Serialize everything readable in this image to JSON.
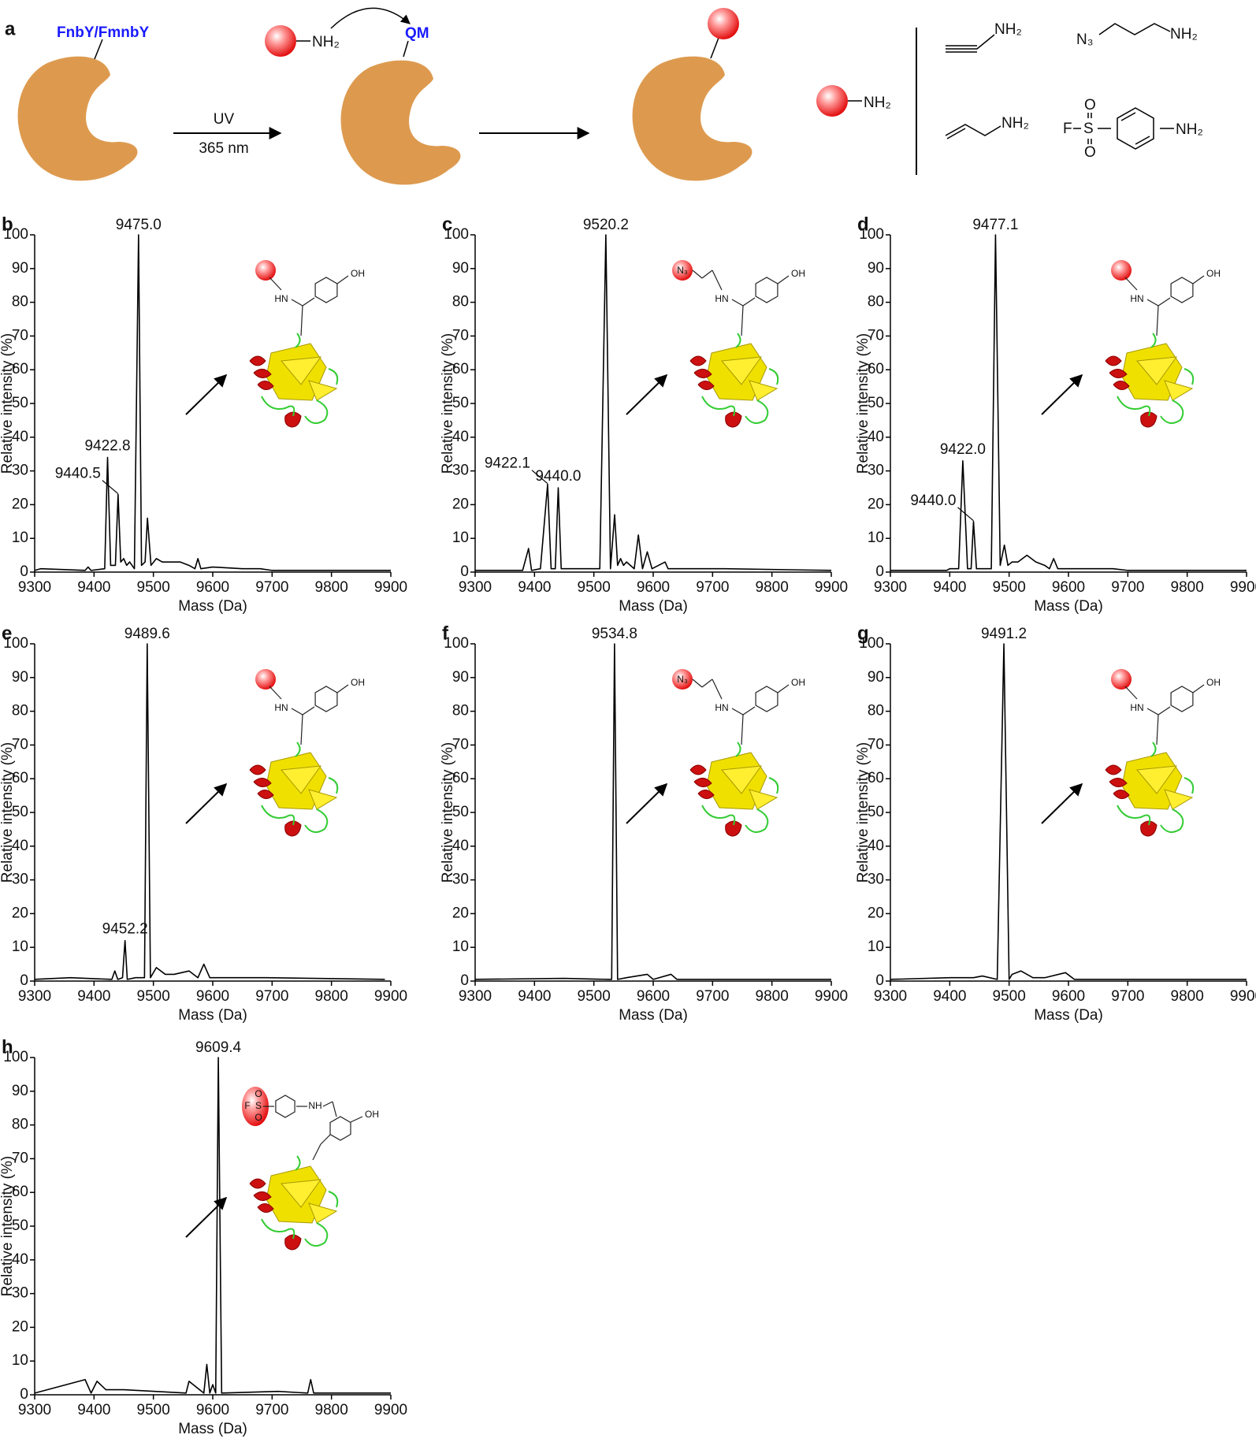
{
  "scheme": {
    "label": "a",
    "residue": "FnbY/FmnbY",
    "uv": "UV",
    "wavelength": "365 nm",
    "nucleophile": "NH₂",
    "intermediate": "QM",
    "reagent": "NH₂",
    "amines": [
      "NH₂",
      "N₃",
      "NH₂",
      "NH₂",
      "F",
      "S",
      "O",
      "O",
      "NH₂"
    ]
  },
  "chart_data": [
    {
      "type": "line",
      "panel": "b",
      "color": "#000000",
      "xlabel": "Mass (Da)",
      "ylabel": "Relative intensity (%)",
      "xlim": [
        9300,
        9900
      ],
      "xticks": [
        9300,
        9400,
        9500,
        9600,
        9700,
        9800,
        9900
      ],
      "ylim": [
        0,
        100
      ],
      "yticks": [
        0,
        10,
        20,
        30,
        40,
        50,
        60,
        70,
        80,
        90,
        100
      ],
      "x": [
        9300,
        9310,
        9385,
        9390,
        9395,
        9418,
        9422.8,
        9428,
        9436,
        9440.5,
        9445,
        9450,
        9455,
        9460,
        9468,
        9475,
        9480,
        9486,
        9490,
        9496,
        9505,
        9515,
        9530,
        9545,
        9560,
        9570,
        9575,
        9580,
        9600,
        9650,
        9680,
        9700,
        9900
      ],
      "values": [
        0.5,
        1,
        0.5,
        1.5,
        0.5,
        1,
        34,
        2,
        2,
        23,
        3,
        4,
        2,
        3,
        1,
        100,
        2,
        3,
        16,
        2,
        4,
        3,
        3,
        3,
        2,
        1,
        4,
        1,
        1.5,
        1,
        1,
        0.5,
        0.5
      ],
      "annotations": [
        {
          "label": "9475.0",
          "x": 9475,
          "y": 100
        },
        {
          "label": "9422.8",
          "x": 9422.8,
          "y": 34
        },
        {
          "label": "9440.5",
          "x": 9440.5,
          "y": 23
        }
      ],
      "inset": [
        "HN",
        "OH"
      ]
    },
    {
      "type": "line",
      "panel": "c",
      "color": "#000000",
      "xlabel": "Mass (Da)",
      "ylabel": "Relative intensity (%)",
      "xlim": [
        9300,
        9900
      ],
      "xticks": [
        9300,
        9400,
        9500,
        9600,
        9700,
        9800,
        9900
      ],
      "ylim": [
        0,
        100
      ],
      "yticks": [
        0,
        10,
        20,
        30,
        40,
        50,
        60,
        70,
        80,
        90,
        100
      ],
      "x": [
        9300,
        9380,
        9390,
        9395,
        9410,
        9422.1,
        9428,
        9435,
        9440,
        9445,
        9470,
        9510,
        9520.2,
        9528,
        9535,
        9540,
        9545,
        9550,
        9555,
        9568,
        9575,
        9582,
        9590,
        9598,
        9620,
        9625,
        9680,
        9720,
        9900
      ],
      "values": [
        0.5,
        0.5,
        7,
        0.5,
        1,
        26,
        1,
        1,
        25,
        1,
        1,
        1,
        100,
        1,
        17,
        2,
        4,
        2,
        3,
        1,
        11,
        1,
        6,
        1,
        3,
        1,
        1,
        1,
        0.5
      ],
      "annotations": [
        {
          "label": "9520.2",
          "x": 9520.2,
          "y": 100
        },
        {
          "label": "9440.0",
          "x": 9440,
          "y": 25
        },
        {
          "label": "9422.1",
          "x": 9422.1,
          "y": 26
        }
      ],
      "inset": [
        "N₃",
        "HN",
        "OH"
      ]
    },
    {
      "type": "line",
      "panel": "d",
      "color": "#000000",
      "xlabel": "Mass (Da)",
      "ylabel": "Relative intensity (%)",
      "xlim": [
        9300,
        9900
      ],
      "xticks": [
        9300,
        9400,
        9500,
        9600,
        9700,
        9800,
        9900
      ],
      "ylim": [
        0,
        100
      ],
      "yticks": [
        0,
        10,
        20,
        30,
        40,
        50,
        60,
        70,
        80,
        90,
        100
      ],
      "x": [
        9300,
        9395,
        9400,
        9415,
        9422,
        9430,
        9436,
        9440,
        9445,
        9470,
        9477.1,
        9485,
        9492,
        9498,
        9505,
        9515,
        9530,
        9545,
        9560,
        9568,
        9575,
        9582,
        9600,
        9675,
        9700,
        9900
      ],
      "values": [
        0.5,
        0.5,
        1,
        1,
        33,
        1,
        1,
        15,
        1,
        1,
        100,
        2,
        8,
        2,
        3,
        3,
        5,
        3,
        2,
        1,
        4,
        1,
        1,
        1,
        0.5,
        0.5
      ],
      "annotations": [
        {
          "label": "9477.1",
          "x": 9477.1,
          "y": 100
        },
        {
          "label": "9422.0",
          "x": 9422,
          "y": 33
        },
        {
          "label": "9440.0",
          "x": 9440,
          "y": 15
        }
      ],
      "inset": [
        "HN",
        "OH"
      ]
    },
    {
      "type": "line",
      "panel": "e",
      "color": "#000000",
      "xlabel": "Mass (Da)",
      "ylabel": "Relative intensity (%)",
      "xlim": [
        9300,
        9900
      ],
      "xticks": [
        9300,
        9400,
        9500,
        9600,
        9700,
        9800,
        9900
      ],
      "ylim": [
        0,
        100
      ],
      "yticks": [
        0,
        10,
        20,
        30,
        40,
        50,
        60,
        70,
        80,
        90,
        100
      ],
      "x": [
        9300,
        9360,
        9430,
        9435,
        9440,
        9448,
        9452.2,
        9456,
        9470,
        9485,
        9489.6,
        9495,
        9505,
        9520,
        9535,
        9560,
        9575,
        9585,
        9595,
        9640,
        9690,
        9890
      ],
      "values": [
        0.5,
        1,
        0.5,
        3,
        0.5,
        1,
        12,
        0.5,
        1,
        1,
        100,
        1,
        4,
        2,
        2,
        3,
        1,
        5,
        1,
        1,
        1,
        0.5
      ],
      "annotations": [
        {
          "label": "9489.6",
          "x": 9489.6,
          "y": 100
        },
        {
          "label": "9452.2",
          "x": 9452.2,
          "y": 12
        }
      ],
      "inset": [
        "HN",
        "OH"
      ]
    },
    {
      "type": "line",
      "panel": "f",
      "color": "#000000",
      "xlabel": "Mass (Da)",
      "ylabel": "Relative intensity (%)",
      "xlim": [
        9300,
        9900
      ],
      "xticks": [
        9300,
        9400,
        9500,
        9600,
        9700,
        9800,
        9900
      ],
      "ylim": [
        0,
        100
      ],
      "yticks": [
        0,
        10,
        20,
        30,
        40,
        50,
        60,
        70,
        80,
        90,
        100
      ],
      "x": [
        9300,
        9450,
        9525,
        9530,
        9534.8,
        9540,
        9555,
        9590,
        9600,
        9630,
        9640,
        9900
      ],
      "values": [
        0.5,
        0.8,
        0.5,
        0.5,
        100,
        0.5,
        1,
        2,
        0.5,
        2,
        0.5,
        0.5
      ],
      "annotations": [
        {
          "label": "9534.8",
          "x": 9534.8,
          "y": 100
        }
      ],
      "inset": [
        "N₃",
        "HN",
        "OH"
      ]
    },
    {
      "type": "line",
      "panel": "g",
      "color": "#000000",
      "xlabel": "Mass (Da)",
      "ylabel": "Relative intensity (%)",
      "xlim": [
        9300,
        9900
      ],
      "xticks": [
        9300,
        9400,
        9500,
        9600,
        9700,
        9800,
        9900
      ],
      "ylim": [
        0,
        100
      ],
      "yticks": [
        0,
        10,
        20,
        30,
        40,
        50,
        60,
        70,
        80,
        90,
        100
      ],
      "x": [
        9300,
        9400,
        9420,
        9440,
        9455,
        9480,
        9491.2,
        9500,
        9505,
        9520,
        9540,
        9560,
        9595,
        9610,
        9680,
        9900
      ],
      "values": [
        0.5,
        1,
        1,
        1,
        1.5,
        0.5,
        100,
        0.5,
        2,
        3,
        1,
        1,
        2.5,
        0.5,
        0.5,
        0.5
      ],
      "annotations": [
        {
          "label": "9491.2",
          "x": 9491.2,
          "y": 100
        }
      ],
      "inset": [
        "HN",
        "OH"
      ]
    },
    {
      "type": "line",
      "panel": "h",
      "color": "#000000",
      "xlabel": "Mass (Da)",
      "ylabel": "Relative intensity (%)",
      "xlim": [
        9300,
        9900
      ],
      "xticks": [
        9300,
        9400,
        9500,
        9600,
        9700,
        9800,
        9900
      ],
      "ylim": [
        0,
        100
      ],
      "yticks": [
        0,
        10,
        20,
        30,
        40,
        50,
        60,
        70,
        80,
        90,
        100
      ],
      "x": [
        9300,
        9385,
        9395,
        9405,
        9420,
        9450,
        9555,
        9560,
        9585,
        9590,
        9595,
        9600,
        9605,
        9609.4,
        9615,
        9710,
        9760,
        9765,
        9770,
        9900
      ],
      "values": [
        0.5,
        4.5,
        0.5,
        4,
        1.5,
        1.5,
        0.5,
        4,
        0.5,
        9,
        0.5,
        3,
        0.5,
        100,
        0.5,
        1,
        0.5,
        4.5,
        0.5,
        0.5
      ],
      "annotations": [
        {
          "label": "9609.4",
          "x": 9609.4,
          "y": 100
        }
      ],
      "inset": [
        "F",
        "S",
        "O",
        "O",
        "NH",
        "OH"
      ]
    }
  ]
}
